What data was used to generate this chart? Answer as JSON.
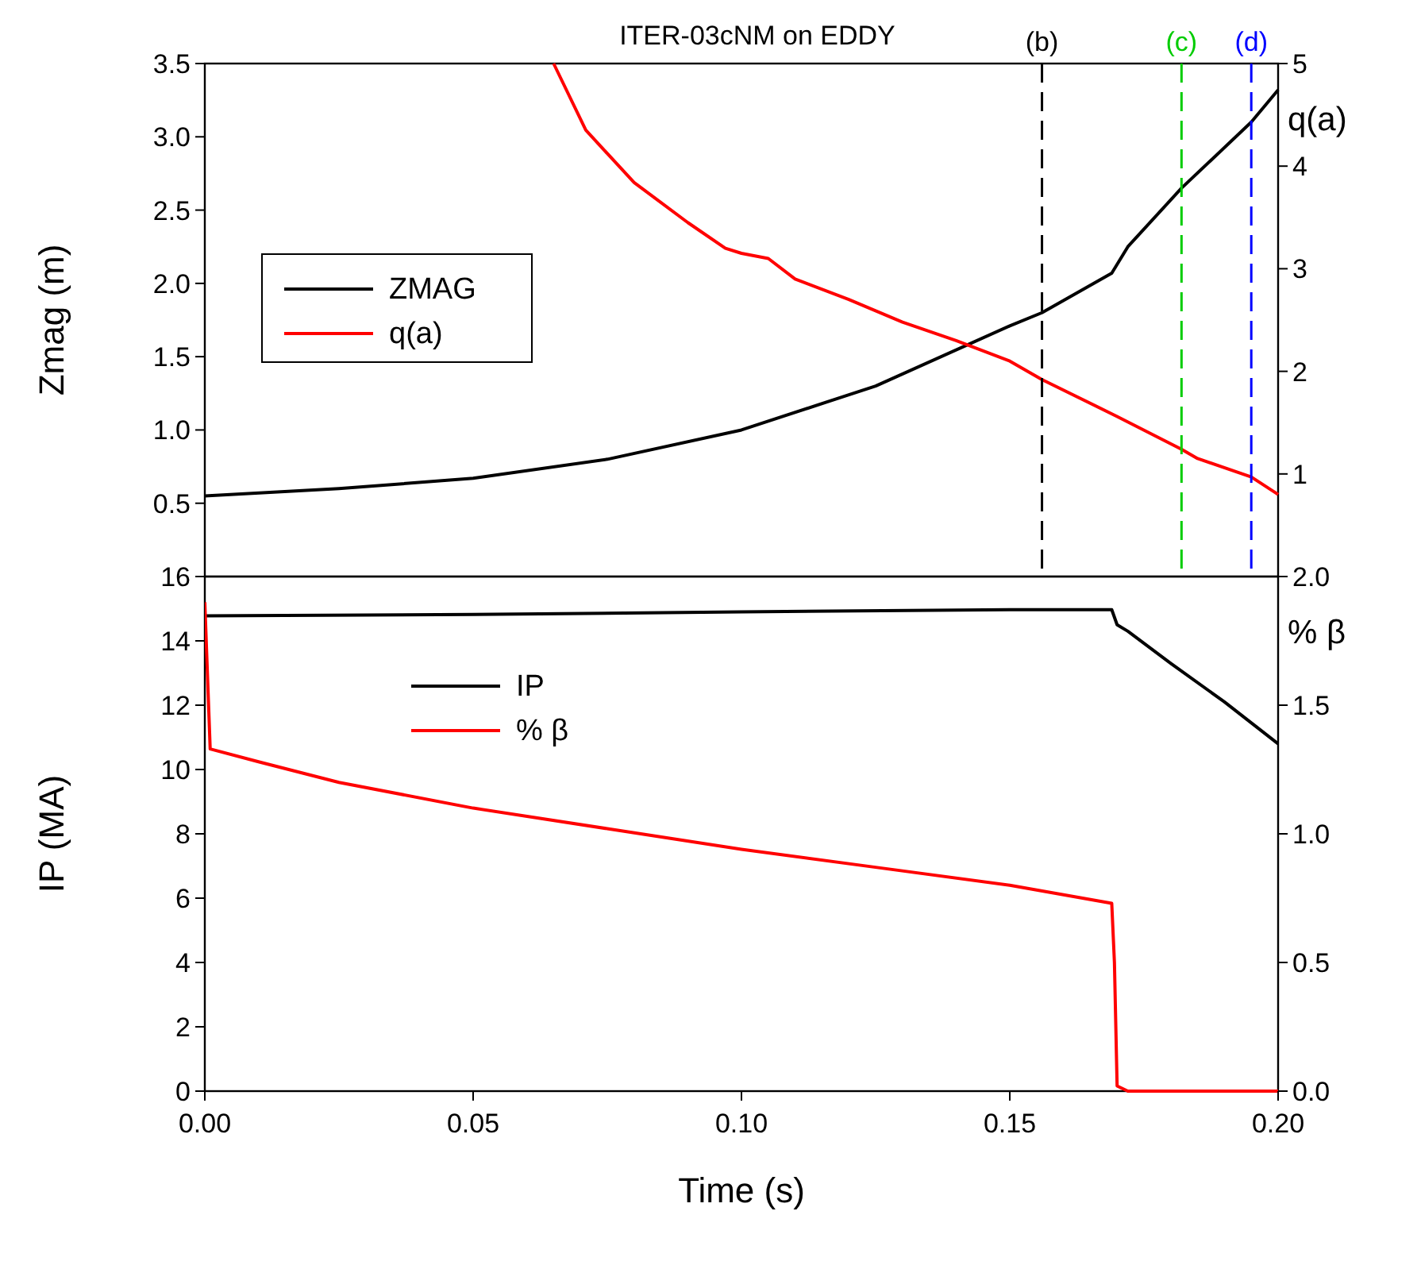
{
  "chart_data": [
    {
      "type": "line",
      "title": "ITER-03cNM on EDDY",
      "ylabel": "Zmag (m)",
      "y2label": "q(a)",
      "xlim": [
        0,
        0.2
      ],
      "ylim": [
        0,
        3.5
      ],
      "yticks": [
        {
          "value": 0,
          "label": null
        },
        {
          "value": 0.5,
          "label": "0.5"
        },
        {
          "value": 1,
          "label": "1.0"
        },
        {
          "value": 1.5,
          "label": "1.5"
        },
        {
          "value": 2,
          "label": "2.0"
        },
        {
          "value": 2.5,
          "label": "2.5"
        },
        {
          "value": 3,
          "label": "3.0"
        },
        {
          "value": 3.5,
          "label": "3.5"
        }
      ],
      "y2lim": [
        0,
        5
      ],
      "y2ticks": [
        {
          "value": 0,
          "label": null
        },
        1,
        2,
        3,
        4,
        5
      ],
      "tick_labels": "y",
      "legend": "left",
      "grid": false,
      "series": [
        {
          "name": "ZMAG",
          "color": "#000000",
          "x": [
            0,
            0.025,
            0.05,
            0.075,
            0.1,
            0.125,
            0.15,
            0.156,
            0.169,
            0.172,
            0.182,
            0.195,
            0.2
          ],
          "values": [
            0.55,
            0.6,
            0.67,
            0.8,
            1.0,
            1.3,
            1.71,
            1.8,
            2.07,
            2.25,
            2.65,
            3.1,
            3.32
          ]
        },
        {
          "name": "q(a)",
          "color": "#ff0000",
          "axis": "y2",
          "x": [
            0.065,
            0.071,
            0.08,
            0.09,
            0.097,
            0.1,
            0.105,
            0.11,
            0.12,
            0.13,
            0.14,
            0.15,
            0.156,
            0.17,
            0.182,
            0.185,
            0.195,
            0.2
          ],
          "values": [
            5,
            4.35,
            3.84,
            3.45,
            3.2,
            3.15,
            3.1,
            2.9,
            2.7,
            2.48,
            2.3,
            2.1,
            1.92,
            1.56,
            1.24,
            1.15,
            0.97,
            0.8
          ]
        }
      ],
      "ref_lines": [
        {
          "axis": "x",
          "value": 0.156,
          "label": "(b)",
          "color": "#000000",
          "line_style": "dashed"
        },
        {
          "axis": "x",
          "value": 0.182,
          "label": "(c)",
          "color": "#00cc00",
          "line_style": "dashed"
        },
        {
          "axis": "x",
          "value": 0.195,
          "label": "(d)",
          "color": "#0000ff",
          "line_style": "dashed"
        }
      ]
    },
    {
      "type": "line",
      "xlabel": "Time (s)",
      "ylabel": "IP (MA)",
      "y2label": "% β",
      "xlim": [
        0,
        0.2
      ],
      "xticks": [
        {
          "value": 0,
          "label": "0.00"
        },
        {
          "value": 0.05,
          "label": "0.05"
        },
        {
          "value": 0.1,
          "label": "0.10"
        },
        {
          "value": 0.15,
          "label": "0.15"
        },
        {
          "value": 0.2,
          "label": "0.20"
        }
      ],
      "ylim": [
        0,
        16
      ],
      "yticks": [
        0,
        2,
        4,
        6,
        8,
        10,
        12,
        14,
        16
      ],
      "y2lim": [
        0,
        2
      ],
      "y2ticks": [
        {
          "value": 0,
          "label": "0.0"
        },
        {
          "value": 0.5,
          "label": "0.5"
        },
        {
          "value": 1,
          "label": "1.0"
        },
        {
          "value": 1.5,
          "label": "1.5"
        },
        {
          "value": 2,
          "label": "2.0"
        }
      ],
      "legend": "top left",
      "grid": false,
      "series": [
        {
          "name": "IP",
          "color": "#000000",
          "x": [
            0,
            0.05,
            0.1,
            0.15,
            0.169,
            0.17,
            0.172,
            0.18,
            0.19,
            0.2
          ],
          "values": [
            14.78,
            14.82,
            14.9,
            14.97,
            14.97,
            14.5,
            14.3,
            13.3,
            12.1,
            10.8
          ]
        },
        {
          "name": "% β",
          "color": "#ff0000",
          "axis": "y2",
          "x": [
            0,
            0.001,
            0.01,
            0.025,
            0.05,
            0.075,
            0.1,
            0.125,
            0.15,
            0.169,
            0.1695,
            0.17,
            0.172,
            0.2
          ],
          "values": [
            1.9,
            1.33,
            1.28,
            1.2,
            1.1,
            1.02,
            0.94,
            0.87,
            0.8,
            0.73,
            0.5,
            0.02,
            0,
            0
          ]
        }
      ]
    }
  ]
}
